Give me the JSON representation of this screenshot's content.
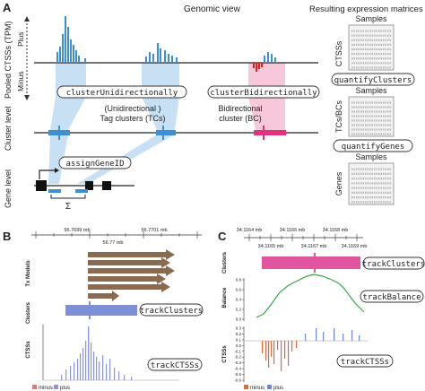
{
  "panel_a": {
    "letter": "A",
    "title": "Genomic view",
    "matrices_title": "Resulting expression matrices",
    "axis_pooled": "Pooled CTSSs (TPM)",
    "axis_plus": "Plus",
    "axis_minus": "Minus",
    "row_cluster": "Cluster level",
    "row_gene": "Gene level",
    "fn_unidirectional": "clusterUnidirectionally",
    "fn_bidirectional": "clusterBidirectionally",
    "fn_assign": "assignGeneID",
    "tc_label_1": "(Unidirectional )",
    "tc_label_2": "Tag clusters (TCs)",
    "bc_label_1": "Bidirectional",
    "bc_label_2": "cluster (BC)",
    "sigma": "Σ",
    "samples": "Samples",
    "ctss_label": "CTSSs",
    "tcbc_label": "TCs/BCs",
    "genes_label": "Genes",
    "fn_quantify_clusters": "quantifyClusters",
    "fn_quantify_genes": "quantifyGenes",
    "colors": {
      "tc": "#3d8fd1",
      "bc": "#e0337e",
      "tc_band": "#c8e0f4",
      "bc_band": "#f6c8da",
      "minus": "#d9201f"
    }
  },
  "panel_b": {
    "letter": "B",
    "coords": [
      "56.7699 mb",
      "56.7701 mb",
      "56.77 mb"
    ],
    "tx_label": "Tx Models",
    "clusters_label": "Clusters",
    "ctss_label": "CTSSs",
    "fn_clusters": "trackClusters",
    "fn_ctss": "trackCTSSs",
    "legend_minus": "minus",
    "legend_plus": "plus",
    "colors": {
      "tx": "#8b6b4f",
      "cluster": "#7f8fd6",
      "plus": "#8a96d8",
      "minus": "#e07a7a"
    }
  },
  "panel_c": {
    "letter": "C",
    "coords": [
      "34.1164 mb",
      "34.1166 mb",
      "34.1168 mb",
      "34.1165 mb",
      "34.1167 mb",
      "34.1169 mb"
    ],
    "clusters_label": "Clusters",
    "balance_label": "Balance",
    "ctss_label": "CTSSs",
    "fn_clusters": "trackClusters",
    "fn_balance": "trackBalance",
    "fn_ctss": "trackCTSSs",
    "balance_ticks": [
      "0.8",
      "0.6",
      "0.4",
      "0.2",
      "0.0"
    ],
    "ctss_ticks": [
      "0.3",
      "0.2",
      "0.1",
      "0.0",
      "-0.1",
      "-0.2",
      "-0.3",
      "-0.4",
      "-0.5",
      "-0.6"
    ],
    "legend_minus": "minus",
    "legend_plus": "plus",
    "colors": {
      "cluster": "#e0559e",
      "balance": "#3aa54a",
      "plus": "#6f86d3",
      "minus": "#e2683a"
    }
  }
}
